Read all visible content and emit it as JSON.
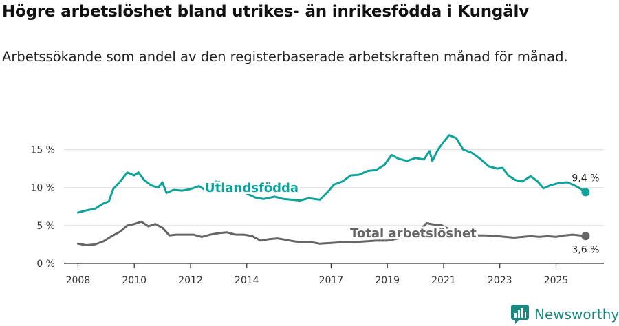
{
  "title": "Högre arbetslöshet bland utrikes- än inrikesfödda i Kungälv",
  "subtitle": "Arbetssökande som andel av den registerbaserade arbetskraften månad för månad.",
  "brand": {
    "name": "Newsworthy",
    "color": "#1a8a80"
  },
  "chart_data": {
    "type": "line",
    "title": "Högre arbetslöshet bland utrikes- än inrikesfödda i Kungälv",
    "xlabel": "",
    "ylabel": "",
    "ylim": [
      0,
      17.5
    ],
    "xlim": [
      2007.5,
      2026.7
    ],
    "y_ticks": [
      0,
      5,
      10,
      15
    ],
    "y_tick_labels": [
      "0 %",
      "5 %",
      "10 %",
      "15 %"
    ],
    "x_ticks": [
      2008,
      2010,
      2012,
      2014,
      2017,
      2019,
      2021,
      2023,
      2025
    ],
    "x_tick_labels": [
      "2008",
      "2010",
      "2012",
      "2014",
      "2017",
      "2019",
      "2021",
      "2023",
      "2025"
    ],
    "grid": true,
    "series": [
      {
        "name": "Utlandsfödda",
        "color": "#0ea39a",
        "end_label": "9,4 %",
        "points": [
          [
            2008.0,
            6.7
          ],
          [
            2008.3,
            7.0
          ],
          [
            2008.6,
            7.2
          ],
          [
            2008.9,
            7.9
          ],
          [
            2009.1,
            8.2
          ],
          [
            2009.25,
            9.8
          ],
          [
            2009.5,
            10.8
          ],
          [
            2009.75,
            12.0
          ],
          [
            2010.0,
            11.6
          ],
          [
            2010.15,
            12.0
          ],
          [
            2010.35,
            11.0
          ],
          [
            2010.6,
            10.3
          ],
          [
            2010.85,
            10.0
          ],
          [
            2011.0,
            10.7
          ],
          [
            2011.15,
            9.3
          ],
          [
            2011.4,
            9.7
          ],
          [
            2011.7,
            9.6
          ],
          [
            2012.0,
            9.8
          ],
          [
            2012.3,
            10.2
          ],
          [
            2012.6,
            9.5
          ],
          [
            2012.9,
            10.8
          ],
          [
            2013.2,
            10.6
          ],
          [
            2013.5,
            10.1
          ],
          [
            2013.8,
            9.5
          ],
          [
            2014.0,
            9.2
          ],
          [
            2014.3,
            8.7
          ],
          [
            2014.6,
            8.5
          ],
          [
            2015.0,
            8.8
          ],
          [
            2015.3,
            8.5
          ],
          [
            2015.6,
            8.4
          ],
          [
            2015.9,
            8.3
          ],
          [
            2016.2,
            8.6
          ],
          [
            2016.6,
            8.4
          ],
          [
            2016.9,
            9.5
          ],
          [
            2017.1,
            10.4
          ],
          [
            2017.4,
            10.8
          ],
          [
            2017.7,
            11.6
          ],
          [
            2018.0,
            11.7
          ],
          [
            2018.3,
            12.2
          ],
          [
            2018.6,
            12.3
          ],
          [
            2018.9,
            13.0
          ],
          [
            2019.15,
            14.3
          ],
          [
            2019.4,
            13.8
          ],
          [
            2019.7,
            13.5
          ],
          [
            2020.0,
            13.9
          ],
          [
            2020.3,
            13.7
          ],
          [
            2020.5,
            14.8
          ],
          [
            2020.6,
            13.5
          ],
          [
            2020.8,
            15.0
          ],
          [
            2021.0,
            16.0
          ],
          [
            2021.2,
            16.9
          ],
          [
            2021.45,
            16.5
          ],
          [
            2021.7,
            15.0
          ],
          [
            2022.0,
            14.6
          ],
          [
            2022.3,
            13.8
          ],
          [
            2022.6,
            12.8
          ],
          [
            2022.9,
            12.5
          ],
          [
            2023.1,
            12.6
          ],
          [
            2023.3,
            11.6
          ],
          [
            2023.55,
            11.0
          ],
          [
            2023.8,
            10.8
          ],
          [
            2024.1,
            11.5
          ],
          [
            2024.35,
            10.8
          ],
          [
            2024.55,
            9.9
          ],
          [
            2024.8,
            10.3
          ],
          [
            2025.1,
            10.6
          ],
          [
            2025.4,
            10.7
          ],
          [
            2025.65,
            10.3
          ],
          [
            2025.85,
            9.9
          ],
          [
            2026.05,
            9.4
          ]
        ]
      },
      {
        "name": "Total arbetslöshet",
        "color": "#666666",
        "end_label": "3,6 %",
        "points": [
          [
            2008.0,
            2.6
          ],
          [
            2008.3,
            2.4
          ],
          [
            2008.6,
            2.5
          ],
          [
            2008.9,
            2.9
          ],
          [
            2009.2,
            3.6
          ],
          [
            2009.5,
            4.2
          ],
          [
            2009.75,
            5.0
          ],
          [
            2010.0,
            5.2
          ],
          [
            2010.25,
            5.5
          ],
          [
            2010.5,
            4.9
          ],
          [
            2010.75,
            5.2
          ],
          [
            2011.0,
            4.7
          ],
          [
            2011.25,
            3.7
          ],
          [
            2011.5,
            3.8
          ],
          [
            2011.8,
            3.8
          ],
          [
            2012.1,
            3.8
          ],
          [
            2012.4,
            3.5
          ],
          [
            2012.7,
            3.8
          ],
          [
            2013.0,
            4.0
          ],
          [
            2013.3,
            4.1
          ],
          [
            2013.6,
            3.8
          ],
          [
            2013.9,
            3.8
          ],
          [
            2014.2,
            3.6
          ],
          [
            2014.5,
            3.0
          ],
          [
            2014.8,
            3.2
          ],
          [
            2015.1,
            3.3
          ],
          [
            2015.4,
            3.1
          ],
          [
            2015.7,
            2.9
          ],
          [
            2016.0,
            2.8
          ],
          [
            2016.3,
            2.8
          ],
          [
            2016.6,
            2.6
          ],
          [
            2017.0,
            2.7
          ],
          [
            2017.4,
            2.8
          ],
          [
            2017.8,
            2.8
          ],
          [
            2018.2,
            2.9
          ],
          [
            2018.6,
            3.0
          ],
          [
            2019.0,
            3.0
          ],
          [
            2019.4,
            3.3
          ],
          [
            2019.8,
            3.4
          ],
          [
            2020.2,
            4.6
          ],
          [
            2020.4,
            5.3
          ],
          [
            2020.7,
            5.1
          ],
          [
            2020.9,
            5.1
          ],
          [
            2021.1,
            4.7
          ],
          [
            2021.4,
            4.3
          ],
          [
            2021.8,
            4.0
          ],
          [
            2022.1,
            3.7
          ],
          [
            2022.5,
            3.7
          ],
          [
            2022.9,
            3.6
          ],
          [
            2023.2,
            3.5
          ],
          [
            2023.5,
            3.4
          ],
          [
            2023.8,
            3.5
          ],
          [
            2024.1,
            3.6
          ],
          [
            2024.4,
            3.5
          ],
          [
            2024.7,
            3.6
          ],
          [
            2025.0,
            3.5
          ],
          [
            2025.3,
            3.7
          ],
          [
            2025.6,
            3.8
          ],
          [
            2025.85,
            3.7
          ],
          [
            2026.05,
            3.6
          ]
        ]
      }
    ],
    "annotations": [
      "Utlandsfödda",
      "Total arbetslöshet"
    ]
  }
}
